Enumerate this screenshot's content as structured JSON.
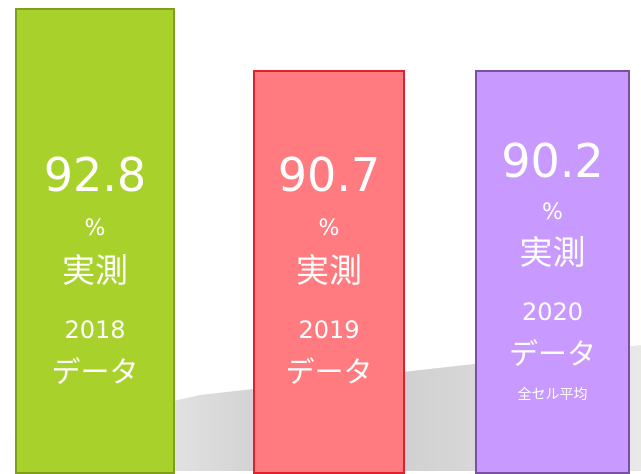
{
  "bars": [
    {
      "value": "92.8",
      "unit": "%",
      "label": "実測",
      "year": "2018",
      "sub": "データ"
    },
    {
      "value": "90.7",
      "unit": "%",
      "label": "実測",
      "year": "2019",
      "sub": "データ"
    },
    {
      "value": "90.2",
      "unit": "%",
      "label": "実測",
      "year": "2020",
      "sub": "データ",
      "note": "全セル平均"
    }
  ]
}
